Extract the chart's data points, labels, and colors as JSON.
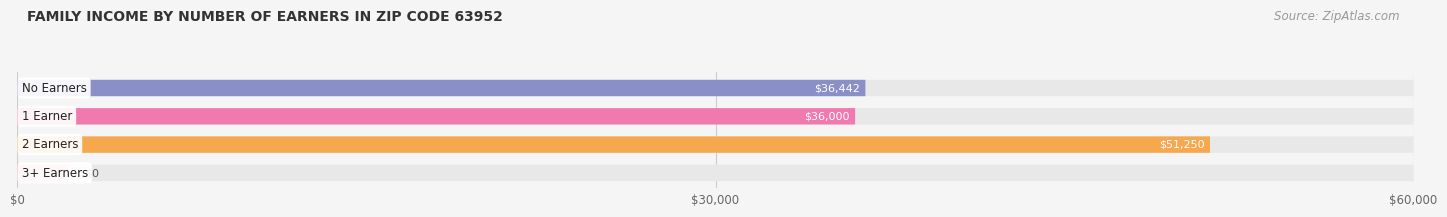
{
  "title": "FAMILY INCOME BY NUMBER OF EARNERS IN ZIP CODE 63952",
  "source": "Source: ZipAtlas.com",
  "categories": [
    "No Earners",
    "1 Earner",
    "2 Earners",
    "3+ Earners"
  ],
  "values": [
    36442,
    36000,
    51250,
    0
  ],
  "value_labels": [
    "$36,442",
    "$36,000",
    "$51,250",
    "$0"
  ],
  "bar_colors": [
    "#8b8fc8",
    "#f07ab0",
    "#f5a84e",
    "#f0a0a8"
  ],
  "bar_bg_color": "#e8e8e8",
  "background_color": "#f5f5f5",
  "xlim": [
    0,
    60000
  ],
  "xtick_labels": [
    "$0",
    "$30,000",
    "$60,000"
  ],
  "xtick_values": [
    0,
    30000,
    60000
  ],
  "title_fontsize": 10,
  "source_fontsize": 8.5,
  "bar_height": 0.58,
  "zero_bar_width": 2200
}
